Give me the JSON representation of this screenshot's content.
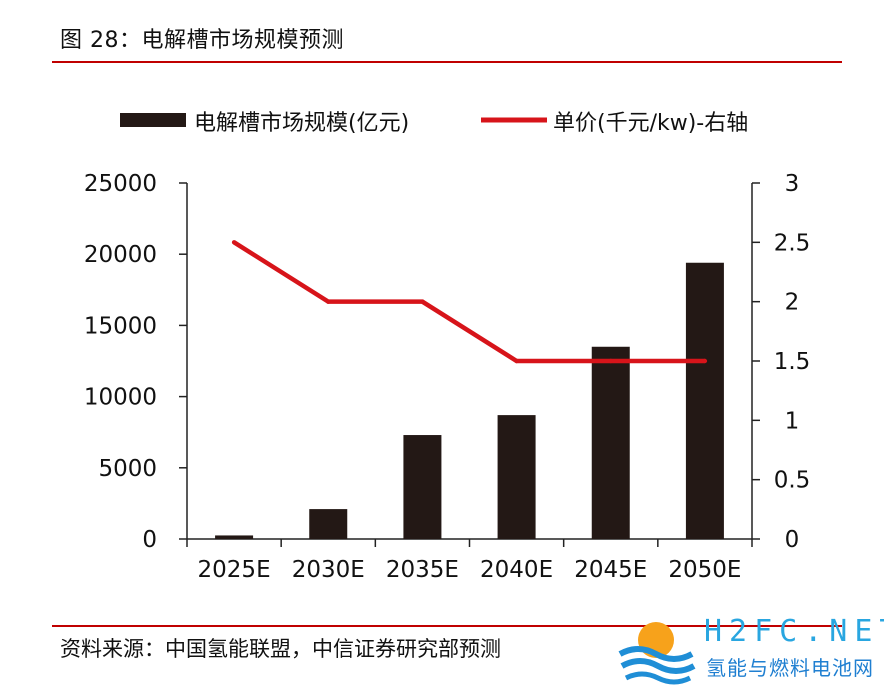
{
  "figure": {
    "title": "图 28：电解槽市场规模预测",
    "source": "资料来源：中国氢能联盟，中信证券研究部预测"
  },
  "watermark": {
    "brand": "H2FC.NET",
    "subtitle": "氢能与燃料电池网"
  },
  "chart_data": {
    "type": "bar",
    "categories": [
      "2025E",
      "2030E",
      "2035E",
      "2040E",
      "2045E",
      "2050E"
    ],
    "series": [
      {
        "name": "电解槽市场规模(亿元)",
        "type": "bar",
        "axis": "left",
        "color": "#231815",
        "values": [
          250,
          2100,
          7300,
          8700,
          13500,
          19400
        ]
      },
      {
        "name": "单价(千元/kw)-右轴",
        "type": "line",
        "axis": "right",
        "color": "#d7141a",
        "values": [
          2.5,
          2.0,
          2.0,
          1.5,
          1.5,
          1.5
        ]
      }
    ],
    "y_left": {
      "range": [
        0,
        25000
      ],
      "ticks": [
        "0",
        "5000",
        "10000",
        "15000",
        "20000",
        "25000"
      ]
    },
    "y_right": {
      "range": [
        0,
        3
      ],
      "ticks": [
        "0",
        "0.5",
        "1",
        "1.5",
        "2",
        "2.5",
        "3"
      ]
    },
    "legend_position": "top",
    "grid": false
  }
}
